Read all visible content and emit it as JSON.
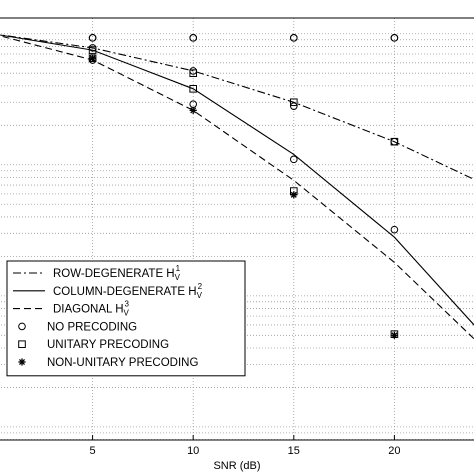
{
  "chart_data": {
    "type": "line",
    "xlabel": "SNR (dB)",
    "x_ticks": [
      5,
      10,
      15,
      20
    ],
    "xlim": [
      0,
      25
    ],
    "y_scale": "log",
    "grid": true,
    "grid_style": "dotted",
    "legend_placement": "bottom-left",
    "series": [
      {
        "name": "ROW-DEGENERATE H",
        "name_subscript": "V",
        "name_superscript": "1",
        "line_style": "dashdot",
        "x": [
          0,
          5,
          10,
          15,
          20,
          25
        ],
        "y": [
          1.0,
          0.78,
          0.52,
          0.3,
          0.15,
          0.065
        ]
      },
      {
        "name": "COLUMN-DEGENERATE H",
        "name_subscript": "V",
        "name_superscript": "2",
        "line_style": "solid",
        "x": [
          0,
          5,
          10,
          15,
          20,
          25
        ],
        "y": [
          1.0,
          0.75,
          0.38,
          0.12,
          0.028,
          0.004
        ]
      },
      {
        "name": "DIAGONAL H",
        "name_subscript": "V",
        "name_superscript": "3",
        "line_style": "dashed",
        "x": [
          0,
          5,
          10,
          15,
          20,
          25
        ],
        "y": [
          1.0,
          0.63,
          0.26,
          0.076,
          0.018,
          0.0033
        ]
      },
      {
        "name": "NO PRECODING",
        "marker": "circle",
        "x": [
          5,
          10,
          15,
          20
        ],
        "y": [
          0.93,
          0.93,
          0.93,
          0.93
        ]
      }
    ],
    "marker_points": [
      {
        "marker": "circle",
        "x": [
          5,
          10,
          15,
          20
        ],
        "y": [
          0.93,
          0.93,
          0.93,
          0.93
        ]
      },
      {
        "marker": "circle",
        "x": [
          5,
          10,
          15,
          20
        ],
        "y": [
          0.78,
          0.52,
          0.28,
          0.15
        ]
      },
      {
        "marker": "circle",
        "x": [
          5,
          10,
          15,
          20
        ],
        "y": [
          0.63,
          0.29,
          0.11,
          0.032
        ]
      },
      {
        "marker": "square",
        "x": [
          5,
          10,
          15,
          20
        ],
        "y": [
          0.75,
          0.5,
          0.3,
          0.15
        ]
      },
      {
        "marker": "square",
        "x": [
          5,
          10,
          15,
          20
        ],
        "y": [
          0.65,
          0.38,
          0.063,
          0.0051
        ]
      },
      {
        "marker": "star",
        "x": [
          5,
          10,
          15,
          20
        ],
        "y": [
          0.65,
          0.26,
          0.059,
          0.005
        ]
      }
    ],
    "legend": [
      {
        "label": "ROW-DEGENERATE H",
        "sub": "V",
        "sup": "1",
        "symbol": "dashdot"
      },
      {
        "label": "COLUMN-DEGENERATE H",
        "sub": "V",
        "sup": "2",
        "symbol": "solid"
      },
      {
        "label": "DIAGONAL H",
        "sub": "V",
        "sup": "3",
        "symbol": "dashed"
      },
      {
        "label": "NO PRECODING",
        "symbol": "circle"
      },
      {
        "label": "UNITARY PRECODING",
        "symbol": "square"
      },
      {
        "label": "NON-UNITARY PRECODING",
        "symbol": "star"
      }
    ]
  }
}
